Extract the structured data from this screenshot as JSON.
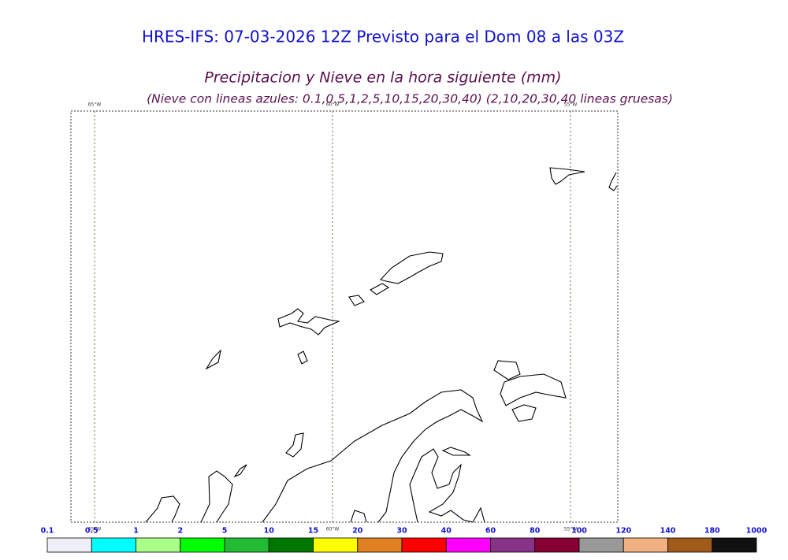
{
  "header": {
    "title": "HRES-IFS: 07-03-2026 12Z Previsto para el Dom 08 a las 03Z",
    "subtitle": "Precipitacion y Nieve en la hora siguiente (mm)",
    "note": "(Nieve con lineas azules: 0.1,0.5,1,2,5,10,15,20,30,40)  (2,10,20,30,40 lineas gruesas)"
  },
  "map": {
    "meridian_labels_top": [
      "65°W",
      "60°W",
      "55°W"
    ],
    "meridian_labels_bottom": [
      "65°W",
      "60°W",
      "55°W"
    ]
  },
  "colorbar": {
    "labels": [
      "0.1",
      "0.5",
      "1",
      "2",
      "5",
      "10",
      "15",
      "20",
      "30",
      "40",
      "60",
      "80",
      "100",
      "120",
      "140",
      "180",
      "1000"
    ],
    "colors": [
      "#eeeef6",
      "#00ffff",
      "#aaff88",
      "#00ff00",
      "#22bb33",
      "#007700",
      "#ffff00",
      "#e08020",
      "#ff0000",
      "#ff00ff",
      "#883388",
      "#880033",
      "#999999",
      "#f0b080",
      "#a05a1a",
      "#111111"
    ]
  }
}
